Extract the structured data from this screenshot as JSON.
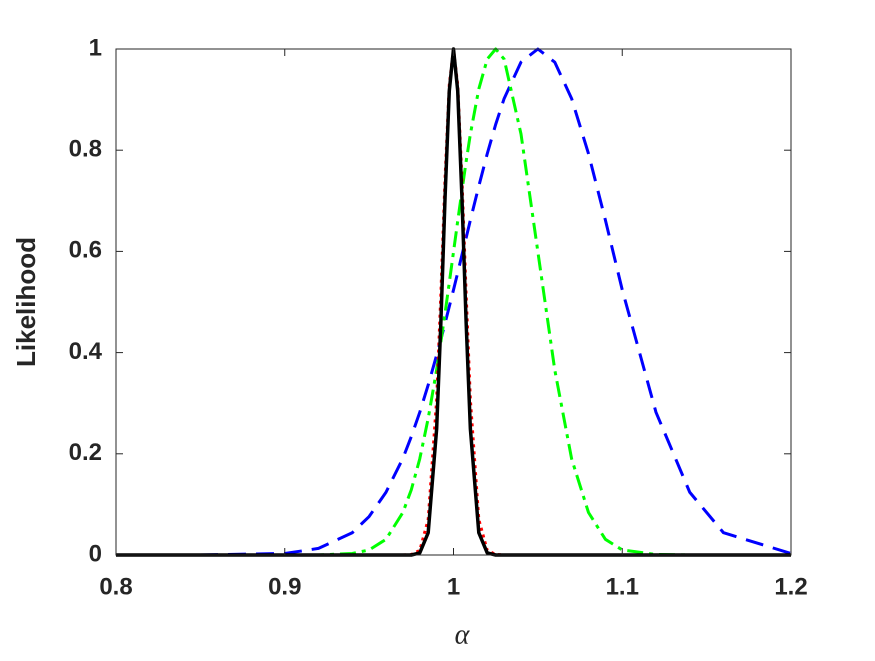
{
  "chart_data": {
    "type": "line",
    "xlabel": "α",
    "ylabel": "Likelihood",
    "x": [
      0.8,
      0.85,
      0.9,
      0.92,
      0.94,
      0.95,
      0.96,
      0.97,
      0.975,
      0.98,
      0.985,
      0.99,
      0.9925,
      0.995,
      0.9975,
      1,
      1.0025,
      1.005,
      1.0075,
      1.01,
      1.015,
      1.02,
      1.025,
      1.03,
      1.04,
      1.05,
      1.06,
      1.07,
      1.08,
      1.09,
      1.1,
      1.12,
      1.14,
      1.16,
      1.2
    ],
    "series": [
      {
        "color": "#0000ff",
        "style": "dashed",
        "values": [
          0,
          0,
          0.003,
          0.013,
          0.044,
          0.076,
          0.124,
          0.191,
          0.234,
          0.282,
          0.336,
          0.395,
          0.426,
          0.458,
          0.491,
          0.524,
          0.558,
          0.593,
          0.627,
          0.662,
          0.729,
          0.793,
          0.851,
          0.902,
          0.974,
          1,
          0.974,
          0.902,
          0.793,
          0.662,
          0.524,
          0.282,
          0.124,
          0.044,
          0.003
        ]
      },
      {
        "color": "#00ff00",
        "style": "dashdot",
        "values": [
          0,
          0,
          0,
          0,
          0.003,
          0.01,
          0.031,
          0.084,
          0.129,
          0.19,
          0.27,
          0.366,
          0.421,
          0.478,
          0.538,
          0.599,
          0.66,
          0.72,
          0.778,
          0.832,
          0.921,
          0.98,
          1,
          0.98,
          0.832,
          0.599,
          0.366,
          0.19,
          0.084,
          0.031,
          0.01,
          0.001,
          0,
          0,
          0
        ]
      },
      {
        "color": "#ff0000",
        "style": "dotted",
        "values": [
          0,
          0,
          0,
          0,
          0,
          0,
          0,
          0,
          0.001,
          0.009,
          0.07,
          0.306,
          0.514,
          0.744,
          0.929,
          1,
          0.929,
          0.744,
          0.514,
          0.306,
          0.07,
          0.009,
          0.001,
          0,
          0,
          0,
          0,
          0,
          0,
          0,
          0,
          0,
          0,
          0,
          0
        ]
      },
      {
        "color": "#000000",
        "style": "solid",
        "values": [
          0,
          0,
          0,
          0,
          0,
          0,
          0,
          0,
          0,
          0.004,
          0.044,
          0.249,
          0.458,
          0.707,
          0.917,
          1,
          0.917,
          0.707,
          0.458,
          0.249,
          0.044,
          0.004,
          0,
          0,
          0,
          0,
          0,
          0,
          0,
          0,
          0,
          0,
          0,
          0,
          0
        ]
      }
    ],
    "xlim": [
      0.8,
      1.2
    ],
    "xticks": [
      0.8,
      0.9,
      1,
      1.1,
      1.2
    ],
    "ylim": [
      0,
      1
    ],
    "yticks": [
      0,
      0.2,
      0.4,
      0.6,
      0.8,
      1
    ],
    "grid": false
  }
}
